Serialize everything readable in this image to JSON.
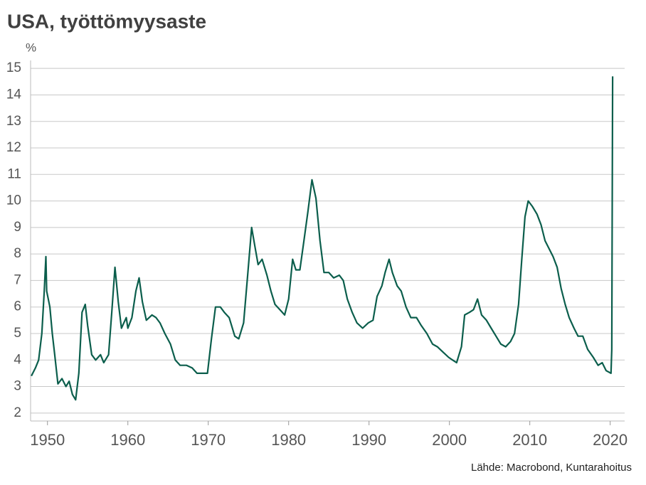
{
  "chart_data": {
    "type": "line",
    "title": "USA, työttömyysaste",
    "y_unit": "%",
    "source": "Lähde: Macrobond, Kuntarahoitus",
    "color": "#0b5e4c",
    "xlim": [
      1947.9,
      2021.8
    ],
    "xticks": [
      1950,
      1960,
      1970,
      1980,
      1990,
      2000,
      2010,
      2020
    ],
    "ylim": [
      1.7,
      15.3
    ],
    "yticks": [
      2,
      3,
      4,
      5,
      6,
      7,
      8,
      9,
      10,
      11,
      12,
      13,
      14,
      15
    ],
    "grid": true,
    "x": [
      1948.0,
      1948.5,
      1948.9,
      1949.3,
      1949.6,
      1949.8,
      1949.9,
      1950.3,
      1950.6,
      1950.9,
      1951.3,
      1951.8,
      1952.3,
      1952.7,
      1953.1,
      1953.5,
      1953.9,
      1954.3,
      1954.7,
      1955.0,
      1955.5,
      1956.0,
      1956.6,
      1957.0,
      1957.6,
      1958.0,
      1958.4,
      1958.8,
      1959.2,
      1959.8,
      1960.0,
      1960.5,
      1961.0,
      1961.4,
      1961.8,
      1962.3,
      1963.0,
      1963.5,
      1964.0,
      1964.6,
      1965.3,
      1965.9,
      1966.5,
      1967.3,
      1968.0,
      1968.6,
      1969.3,
      1969.9,
      1970.4,
      1970.9,
      1971.5,
      1972.0,
      1972.6,
      1973.3,
      1973.8,
      1974.4,
      1974.9,
      1975.4,
      1975.8,
      1976.2,
      1976.7,
      1977.3,
      1977.8,
      1978.3,
      1978.9,
      1979.5,
      1980.0,
      1980.5,
      1980.9,
      1981.4,
      1981.9,
      1982.4,
      1982.9,
      1983.4,
      1983.9,
      1984.4,
      1985.0,
      1985.6,
      1986.3,
      1986.8,
      1987.3,
      1987.9,
      1988.5,
      1989.2,
      1989.9,
      1990.5,
      1991.0,
      1991.6,
      1992.0,
      1992.5,
      1992.9,
      1993.5,
      1994.0,
      1994.6,
      1995.2,
      1995.9,
      1996.5,
      1997.2,
      1997.9,
      1998.5,
      1999.2,
      1999.9,
      2000.4,
      2000.9,
      2001.5,
      2001.9,
      2002.5,
      2003.0,
      2003.5,
      2004.0,
      2004.6,
      2005.2,
      2005.8,
      2006.4,
      2007.0,
      2007.6,
      2008.1,
      2008.6,
      2009.0,
      2009.4,
      2009.8,
      2010.3,
      2010.9,
      2011.4,
      2011.9,
      2012.4,
      2012.9,
      2013.4,
      2013.9,
      2014.4,
      2014.9,
      2015.5,
      2016.0,
      2016.6,
      2017.2,
      2017.9,
      2018.5,
      2019.0,
      2019.5,
      2020.1,
      2020.2,
      2020.3
    ],
    "values": [
      3.4,
      3.7,
      4.0,
      5.0,
      6.6,
      7.9,
      6.6,
      6.0,
      5.0,
      4.2,
      3.1,
      3.3,
      3.0,
      3.2,
      2.7,
      2.5,
      3.5,
      5.8,
      6.1,
      5.3,
      4.2,
      4.0,
      4.2,
      3.9,
      4.2,
      5.8,
      7.5,
      6.2,
      5.2,
      5.6,
      5.2,
      5.6,
      6.6,
      7.1,
      6.2,
      5.5,
      5.7,
      5.6,
      5.4,
      5.0,
      4.6,
      4.0,
      3.8,
      3.8,
      3.7,
      3.5,
      3.5,
      3.5,
      4.8,
      6.0,
      6.0,
      5.8,
      5.6,
      4.9,
      4.8,
      5.4,
      7.2,
      9.0,
      8.3,
      7.6,
      7.8,
      7.2,
      6.6,
      6.1,
      5.9,
      5.7,
      6.3,
      7.8,
      7.4,
      7.4,
      8.5,
      9.6,
      10.8,
      10.1,
      8.5,
      7.3,
      7.3,
      7.1,
      7.2,
      7.0,
      6.3,
      5.8,
      5.4,
      5.2,
      5.4,
      5.5,
      6.4,
      6.8,
      7.3,
      7.8,
      7.3,
      6.8,
      6.6,
      6.0,
      5.6,
      5.6,
      5.3,
      5.0,
      4.6,
      4.5,
      4.3,
      4.1,
      4.0,
      3.9,
      4.5,
      5.7,
      5.8,
      5.9,
      6.3,
      5.7,
      5.5,
      5.2,
      4.9,
      4.6,
      4.5,
      4.7,
      5.0,
      6.1,
      7.8,
      9.4,
      10.0,
      9.8,
      9.5,
      9.1,
      8.5,
      8.2,
      7.9,
      7.5,
      6.7,
      6.1,
      5.6,
      5.2,
      4.9,
      4.9,
      4.4,
      4.1,
      3.8,
      3.9,
      3.6,
      3.5,
      4.4,
      14.7
    ]
  }
}
